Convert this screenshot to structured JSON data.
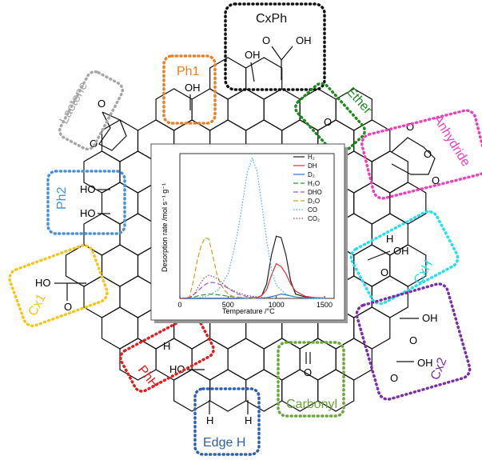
{
  "colors": {
    "CxPh": "#111111",
    "Ph1": "#ef7d22",
    "Lactone": "#a6a6a6",
    "Ether": "#1d8a1d",
    "Anhydride": "#ef3fbe",
    "Ph2": "#4a90d9",
    "CxH": "#22e0ee",
    "Cx1": "#f5c518",
    "Cx2": "#7a2fa6",
    "PhH": "#e11d1d",
    "Carbonyl": "#6aa83a",
    "EdgeH": "#2f5fb3"
  },
  "groups": {
    "CxPh": "CxPh",
    "Ph1": "Ph1",
    "Lactone": "Lactone",
    "Ether": "Ether",
    "Anhydride": "Anhydride",
    "Ph2": "Ph2",
    "CxH": "CxH",
    "Cx1": "Cx1",
    "Cx2": "Cx2",
    "PhH": "PhH",
    "Carbonyl": "Carbonyl",
    "EdgeH": "Edge H"
  },
  "atoms": {
    "OH": "OH",
    "HO": "HO",
    "O": "O",
    "H": "H"
  },
  "chart_data": {
    "type": "line",
    "xlabel": "Temperature /°C",
    "ylabel": "Desorption rate /mol s⁻¹ g⁻¹",
    "xlim": [
      0,
      1600
    ],
    "xticks": [
      0,
      500,
      1000,
      1500
    ],
    "ylim": [
      0,
      1
    ],
    "legend_position": "top-right",
    "series": [
      {
        "name": "H2",
        "display": "H₂",
        "color": "#222222",
        "dash": "",
        "x": [
          0,
          200,
          400,
          600,
          800,
          850,
          900,
          950,
          1000,
          1050,
          1100,
          1150,
          1200,
          1300,
          1400,
          1500
        ],
        "y": [
          0,
          0,
          0,
          0,
          0.005,
          0.02,
          0.1,
          0.3,
          0.43,
          0.42,
          0.3,
          0.12,
          0.03,
          0.01,
          0.005,
          0.002
        ]
      },
      {
        "name": "DH",
        "display": "DH",
        "color": "#e03030",
        "dash": "",
        "x": [
          0,
          200,
          400,
          600,
          800,
          850,
          900,
          950,
          1000,
          1050,
          1100,
          1150,
          1200,
          1300,
          1400,
          1500
        ],
        "y": [
          0,
          0,
          0,
          0,
          0.005,
          0.02,
          0.06,
          0.16,
          0.24,
          0.22,
          0.17,
          0.1,
          0.05,
          0.015,
          0.005,
          0.002
        ]
      },
      {
        "name": "D2",
        "display": "D₂",
        "color": "#2f6fd0",
        "dash": "",
        "x": [
          0,
          200,
          400,
          600,
          800,
          900,
          1000,
          1050,
          1100,
          1200,
          1300,
          1400,
          1500
        ],
        "y": [
          0,
          0,
          0,
          0,
          0,
          0.005,
          0.02,
          0.03,
          0.025,
          0.01,
          0.004,
          0.002,
          0.001
        ]
      },
      {
        "name": "H2O",
        "display": "H₂O",
        "color": "#2a9a3a",
        "dash": "6,3",
        "x": [
          0,
          100,
          150,
          200,
          250,
          300,
          350,
          400,
          450,
          500,
          600,
          700,
          800,
          900,
          1000
        ],
        "y": [
          0,
          0.005,
          0.01,
          0.02,
          0.025,
          0.03,
          0.028,
          0.025,
          0.02,
          0.015,
          0.008,
          0.004,
          0.002,
          0.001,
          0
        ]
      },
      {
        "name": "DHO",
        "display": "DHO",
        "color": "#9b59d0",
        "dash": "6,3",
        "x": [
          0,
          100,
          150,
          200,
          250,
          300,
          350,
          400,
          450,
          500,
          550,
          600,
          700,
          800,
          900
        ],
        "y": [
          0,
          0.005,
          0.03,
          0.06,
          0.09,
          0.11,
          0.11,
          0.1,
          0.09,
          0.07,
          0.05,
          0.03,
          0.012,
          0.004,
          0
        ]
      },
      {
        "name": "D2O",
        "display": "D₂O",
        "color": "#c9a227",
        "dash": "6,3",
        "x": [
          0,
          100,
          140,
          180,
          220,
          260,
          300,
          340,
          380,
          420,
          460,
          500,
          550,
          600,
          700,
          800
        ],
        "y": [
          0,
          0.01,
          0.12,
          0.26,
          0.36,
          0.42,
          0.41,
          0.3,
          0.18,
          0.1,
          0.06,
          0.03,
          0.015,
          0.01,
          0.003,
          0
        ]
      },
      {
        "name": "CO",
        "display": "CO",
        "color": "#3fb8d8",
        "dash": "1.5,2",
        "x": [
          0,
          200,
          300,
          400,
          500,
          550,
          600,
          650,
          700,
          750,
          800,
          850,
          900,
          950,
          1000,
          1100,
          1200,
          1300,
          1500
        ],
        "y": [
          0,
          0.005,
          0.02,
          0.06,
          0.17,
          0.3,
          0.46,
          0.66,
          0.87,
          0.97,
          0.88,
          0.65,
          0.4,
          0.2,
          0.09,
          0.03,
          0.01,
          0.004,
          0
        ]
      },
      {
        "name": "CO2",
        "display": "CO₂",
        "color": "#9a4a6a",
        "dash": "1.5,2",
        "x": [
          0,
          100,
          150,
          200,
          250,
          300,
          350,
          400,
          450,
          500,
          600,
          700,
          800,
          900,
          1000
        ],
        "y": [
          0,
          0.005,
          0.03,
          0.09,
          0.14,
          0.16,
          0.15,
          0.13,
          0.1,
          0.07,
          0.04,
          0.02,
          0.01,
          0.004,
          0
        ]
      }
    ]
  }
}
